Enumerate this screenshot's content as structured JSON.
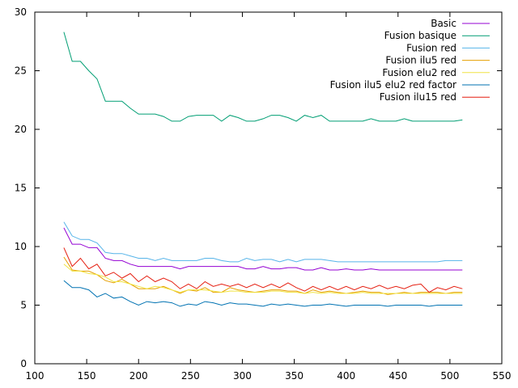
{
  "chart_data": {
    "type": "line",
    "title": "",
    "xlabel": "",
    "ylabel": "",
    "xlim": [
      100,
      550
    ],
    "ylim": [
      0,
      30
    ],
    "xticks": [
      100,
      150,
      200,
      250,
      300,
      350,
      400,
      450,
      500,
      550
    ],
    "yticks": [
      0,
      5,
      10,
      15,
      20,
      25,
      30
    ],
    "grid": false,
    "legend_position": "top-right",
    "x": [
      128,
      136,
      144,
      152,
      160,
      168,
      176,
      184,
      192,
      200,
      208,
      216,
      224,
      232,
      240,
      248,
      256,
      264,
      272,
      280,
      288,
      296,
      304,
      312,
      320,
      328,
      336,
      344,
      352,
      360,
      368,
      376,
      384,
      392,
      400,
      408,
      416,
      424,
      432,
      440,
      448,
      456,
      464,
      472,
      480,
      488,
      496,
      504,
      512
    ],
    "series": [
      {
        "name": "Basic",
        "color": "#9400d3",
        "values": [
          11.6,
          10.2,
          10.2,
          9.9,
          9.9,
          9.0,
          8.8,
          8.8,
          8.5,
          8.3,
          8.3,
          8.3,
          8.3,
          8.3,
          8.1,
          8.3,
          8.3,
          8.3,
          8.3,
          8.3,
          8.3,
          8.3,
          8.1,
          8.1,
          8.3,
          8.1,
          8.1,
          8.2,
          8.2,
          8.0,
          8.0,
          8.2,
          8.0,
          8.0,
          8.1,
          8.0,
          8.0,
          8.1,
          8.0,
          8.0,
          8.0,
          8.0,
          8.0,
          8.0,
          8.0,
          8.0,
          8.0,
          8.0,
          8.0
        ]
      },
      {
        "name": "Fusion basique",
        "color": "#009e73",
        "values": [
          28.3,
          25.8,
          25.8,
          25.0,
          24.3,
          22.4,
          22.4,
          22.4,
          21.8,
          21.3,
          21.3,
          21.3,
          21.1,
          20.7,
          20.7,
          21.1,
          21.2,
          21.2,
          21.2,
          20.7,
          21.2,
          21.0,
          20.7,
          20.7,
          20.9,
          21.2,
          21.2,
          21.0,
          20.7,
          21.2,
          21.0,
          21.2,
          20.7,
          20.7,
          20.7,
          20.7,
          20.7,
          20.9,
          20.7,
          20.7,
          20.7,
          20.9,
          20.7,
          20.7,
          20.7,
          20.7,
          20.7,
          20.7,
          20.8
        ]
      },
      {
        "name": "Fusion red",
        "color": "#56b4e9",
        "values": [
          12.1,
          10.9,
          10.6,
          10.6,
          10.3,
          9.5,
          9.4,
          9.4,
          9.2,
          9.0,
          9.0,
          8.8,
          9.0,
          8.8,
          8.8,
          8.8,
          8.8,
          9.0,
          9.0,
          8.8,
          8.7,
          8.7,
          9.0,
          8.8,
          8.9,
          8.9,
          8.7,
          8.9,
          8.7,
          8.9,
          8.9,
          8.9,
          8.8,
          8.7,
          8.7,
          8.7,
          8.7,
          8.7,
          8.7,
          8.7,
          8.7,
          8.7,
          8.7,
          8.7,
          8.7,
          8.7,
          8.8,
          8.8,
          8.8
        ]
      },
      {
        "name": "Fusion ilu5 red",
        "color": "#e69f00",
        "values": [
          9.1,
          8.0,
          7.9,
          7.9,
          7.6,
          7.1,
          6.9,
          7.2,
          6.8,
          6.4,
          6.4,
          6.4,
          6.6,
          6.3,
          6.0,
          6.3,
          6.2,
          6.5,
          6.1,
          6.1,
          6.5,
          6.3,
          6.2,
          6.1,
          6.2,
          6.3,
          6.3,
          6.2,
          6.2,
          6.0,
          6.3,
          6.1,
          6.2,
          6.1,
          6.0,
          6.1,
          6.2,
          6.1,
          6.1,
          5.9,
          6.0,
          6.1,
          6.0,
          6.1,
          6.1,
          6.1,
          6.0,
          6.1,
          6.1
        ]
      },
      {
        "name": "Fusion elu2 red",
        "color": "#f0e442",
        "values": [
          8.5,
          7.9,
          7.9,
          7.7,
          7.6,
          7.4,
          7.0,
          7.0,
          6.8,
          6.6,
          6.4,
          6.6,
          6.5,
          6.3,
          6.1,
          6.3,
          6.3,
          6.3,
          6.2,
          6.1,
          6.2,
          6.2,
          6.1,
          6.1,
          6.1,
          6.2,
          6.2,
          6.1,
          6.1,
          6.0,
          6.1,
          6.0,
          6.1,
          6.0,
          6.0,
          6.0,
          6.1,
          6.0,
          6.0,
          6.0,
          6.0,
          6.0,
          6.0,
          6.0,
          6.0,
          6.0,
          6.0,
          6.0,
          6.0
        ]
      },
      {
        "name": "Fusion ilu5 elu2 red factor",
        "color": "#0072b2",
        "values": [
          7.1,
          6.5,
          6.5,
          6.3,
          5.7,
          6.0,
          5.6,
          5.7,
          5.3,
          5.0,
          5.3,
          5.2,
          5.3,
          5.2,
          4.9,
          5.1,
          5.0,
          5.3,
          5.2,
          5.0,
          5.2,
          5.1,
          5.1,
          5.0,
          4.9,
          5.1,
          5.0,
          5.1,
          5.0,
          4.9,
          5.0,
          5.0,
          5.1,
          5.0,
          4.9,
          5.0,
          5.0,
          5.0,
          5.0,
          4.9,
          5.0,
          5.0,
          5.0,
          5.0,
          4.9,
          5.0,
          5.0,
          5.0,
          5.0
        ]
      },
      {
        "name": "Fusion ilu15 red",
        "color": "#e51e10",
        "values": [
          9.9,
          8.3,
          9.0,
          8.1,
          8.5,
          7.5,
          7.8,
          7.3,
          7.7,
          7.0,
          7.5,
          7.0,
          7.3,
          7.0,
          6.4,
          6.8,
          6.4,
          7.0,
          6.6,
          6.8,
          6.6,
          6.8,
          6.5,
          6.8,
          6.5,
          6.8,
          6.5,
          6.9,
          6.5,
          6.2,
          6.6,
          6.3,
          6.6,
          6.3,
          6.6,
          6.3,
          6.6,
          6.4,
          6.7,
          6.4,
          6.6,
          6.4,
          6.7,
          6.8,
          6.1,
          6.5,
          6.3,
          6.6,
          6.4
        ]
      }
    ]
  }
}
